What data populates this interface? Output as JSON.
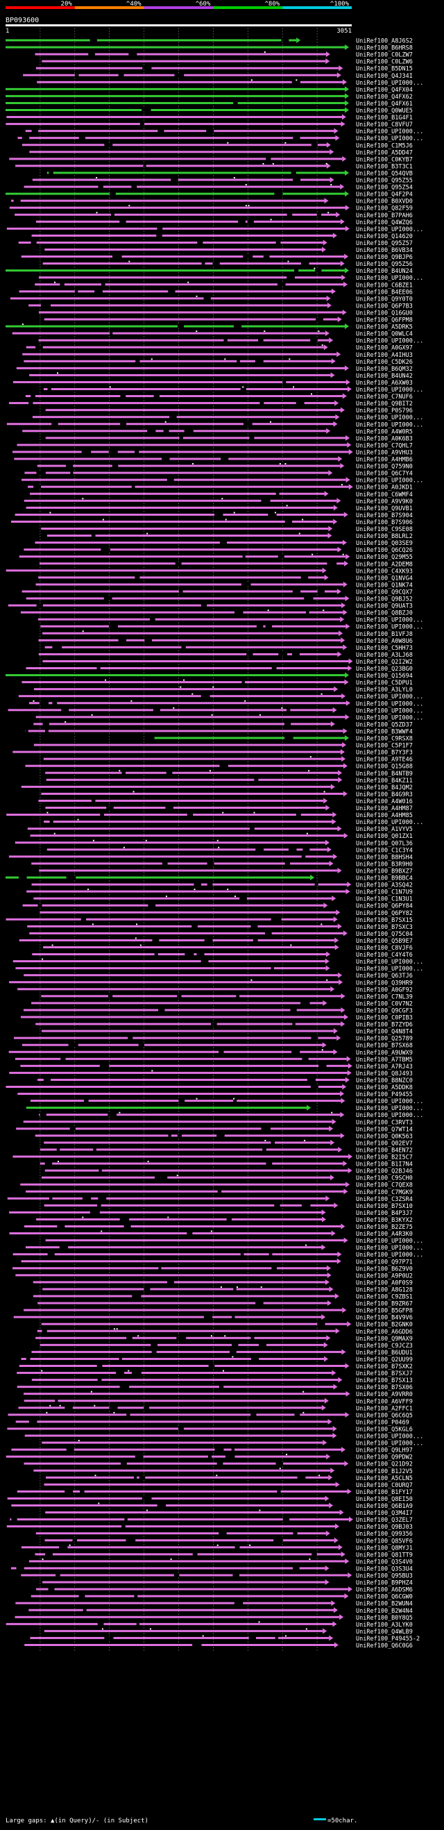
{
  "header": {
    "scale_labels": [
      "20%",
      "^40%",
      "^60%",
      "^80%",
      "^100%"
    ],
    "scale_colors": [
      "#ff0000",
      "#ff8000",
      "#b040e0",
      "#00cc00",
      "#00ccdd"
    ],
    "query_id": "BP093600",
    "start_label": "1",
    "end_label": "3051"
  },
  "colors": {
    "magenta": "#e070e0",
    "green": "#33cc33",
    "white": "#ffffff",
    "grid": "#7a7a7a",
    "background": "#000000"
  },
  "rows": [
    "UniRef100_A8J6S2",
    "UniRef100_B6HRS8",
    "UniRef100_C0LZW7",
    "UniRef100_C0LZW6",
    "UniRef100_B5DN15",
    "UniRef100_Q4J34I",
    "UniRef100_UPI000...",
    "UniRef100_Q4FX04",
    "UniRef100_Q4FX62",
    "UniRef100_Q4FX61",
    "UniRef100_Q0WUE5",
    "UniRef100_B1G4F1",
    "UniRef100_C8VFU7",
    "UniRef100_UPI000...",
    "UniRef100_UPI000...",
    "UniRef100_C1M5J6",
    "UniRef100_A5DD47",
    "UniRef100_C0KYB7",
    "UniRef100_B3T3C1",
    "UniRef100_Q54QVB",
    "UniRef100_Q95Z55",
    "UniRef100_Q95Z54",
    "UniRef100_Q4F2P4",
    "UniRef100_B0XVD0",
    "UniRef100_Q82F59",
    "UniRef100_B7PAH6",
    "UniRef100_Q4WZQ6",
    "UniRef100_UPI000...",
    "UniRef100_Q14620",
    "UniRef100_Q95Z57",
    "UniRef100_B6VB34",
    "UniRef100_Q9BJP6",
    "UniRef100_Q95Z56",
    "UniRef100_B4UN24",
    "UniRef100_UPI000...",
    "UniRef100_C6BZE1",
    "UniRef100_B4EE06",
    "UniRef100_Q9Y0T0",
    "UniRef100_Q6P7B3",
    "UniRef100_Q16GU0",
    "UniRef100_Q6FPM8",
    "UniRef100_A5DRK5",
    "UniRef100_Q0WLC4",
    "UniRef100_UPI000...",
    "UniRef100_A0GX97",
    "UniRef100_A4IHU3",
    "UniRef100_C5DK26",
    "UniRef100_B6QM32",
    "UniRef100_B4UN42",
    "UniRef100_A6XW03",
    "UniRef100_UPI000...",
    "UniRef100_C7NUF6",
    "UniRef100_Q9BIT2",
    "UniRef100_P0S796",
    "UniRef100_UPI000...",
    "UniRef100_UPI000...",
    "UniRef100_A4W0R5",
    "UniRef100_A0K6B3",
    "UniRef100_C7QHL7",
    "UniRef100_A9VHU3",
    "UniRef100_A4HMB6",
    "UniRef100_Q759N0",
    "UniRef100_Q6C7Y4",
    "UniRef100_UPI000...",
    "UniRef100_A0JKD1",
    "UniRef100_C6WMF4",
    "UniRef100_A9V9K0",
    "UniRef100_Q9UVB1",
    "UniRef100_B7S904",
    "UniRef100_B7S906",
    "UniRef100_C9SE08",
    "UniRef100_B8LRL2",
    "UniRef100_Q03SE9",
    "UniRef100_Q6CQ26",
    "UniRef100_Q29M55",
    "UniRef100_A2DEM8",
    "UniRef100_C4XK93",
    "UniRef100_Q1NVG4",
    "UniRef100_Q1NK74",
    "UniRef100_Q9CQX7",
    "UniRef100_Q9BJ52",
    "UniRef100_Q9UAT3",
    "UniRef100_Q8BZJ0",
    "UniRef100_UPI000...",
    "UniRef100_UPI000...",
    "UniRef100_B1VFJ8",
    "UniRef100_A0W8U6",
    "UniRef100_C5HH73",
    "UniRef100_A3LJ68",
    "UniRef100_Q2I2W2",
    "UniRef100_Q23BG0",
    "UniRef100_Q15694",
    "UniRef100_C5DPU1",
    "UniRef100_A3LYL0",
    "UniRef100_UPI000...",
    "UniRef100_UPI000...",
    "UniRef100_UPI000...",
    "UniRef100_UPI000...",
    "UniRef100_Q5ZD37",
    "UniRef100_B3WWF4",
    "UniRef100_C9RSX8",
    "UniRef100_C5P1F7",
    "UniRef100_B7Y3F3",
    "UniRef100_A9TE46",
    "UniRef100_Q15G88",
    "UniRef100_B4NTB9",
    "UniRef100_B4KZ11",
    "UniRef100_B4JQM2",
    "UniRef100_B4G9R3",
    "UniRef100_A4W016",
    "UniRef100_A4HM87",
    "UniRef100_A4HM85",
    "UniRef100_UPI000...",
    "UniRef100_A1VYV5",
    "UniRef100_Q01ZX1",
    "UniRef100_Q07L36",
    "UniRef100_C1C3Y4",
    "UniRef100_B8HSH4",
    "UniRef100_B3R9H0",
    "UniRef100_B9BXZ7",
    "UniRef100_B9BBC4",
    "UniRef100_A3SQ42",
    "UniRef100_C1N7U9",
    "UniRef100_C1N3U1",
    "UniRef100_Q6PY84",
    "UniRef100_Q6PY82",
    "UniRef100_B7SX15",
    "UniRef100_B7SXC3",
    "UniRef100_Q75C04",
    "UniRef100_Q5B9E7",
    "UniRef100_C8VJF6",
    "UniRef100_C4Y4T6",
    "UniRef100_UPI000...",
    "UniRef100_UPI000...",
    "UniRef100_Q63TJ6",
    "UniRef100_Q39HR9",
    "UniRef100_A0GF92",
    "UniRef100_C7NL39",
    "UniRef100_C0V7N2",
    "UniRef100_Q9CGF3",
    "UniRef100_C0PIB3",
    "UniRef100_B7ZYD6",
    "UniRef100_Q4N8T4",
    "UniRef100_Q25789",
    "UniRef100_B7SX68",
    "UniRef100_A9UWX9",
    "UniRef100_A7TBM5",
    "UniRef100_A7RJ43",
    "UniRef100_Q8J493",
    "UniRef100_B8NZC0",
    "UniRef100_A5DDK8",
    "UniRef100_P49455",
    "UniRef100_UPI000...",
    "UniRef100_UPI000...",
    "UniRef100_UPI000...",
    "UniRef100_C3RVT3",
    "UniRef100_Q7WT14",
    "UniRef100_Q0K563",
    "UniRef100_Q02EV7",
    "UniRef100_B4EN72",
    "UniRef100_B2I5C7",
    "UniRef100_B1I7N4",
    "UniRef100_Q2BJ46",
    "UniRef100_C9SCH0",
    "UniRef100_C7QEX8",
    "UniRef100_C7MGK9",
    "UniRef100_C3ZSR4",
    "UniRef100_B7SX10",
    "UniRef100_B4P3J7",
    "UniRef100_B3KYX2",
    "UniRef100_B2ZE75",
    "UniRef100_A4R3K0",
    "UniRef100_UPI000...",
    "UniRef100_UPI000...",
    "UniRef100_UPI000...",
    "UniRef100_Q97P71",
    "UniRef100_B6Z9V0",
    "UniRef100_A9P0U2",
    "UniRef100_A0F0S9",
    "UniRef100_A8G128",
    "UniRef100_C9ZBS1",
    "UniRef100_B9ZR67",
    "UniRef100_B5GFP8",
    "UniRef100_B4V9V6",
    "UniRef100_B2GNK0",
    "UniRef100_A6GDD6",
    "UniRef100_Q9MAX9",
    "UniRef100_C9JCZ3",
    "UniRef100_B6UDU1",
    "UniRef100_Q2UU99",
    "UniRef100_B7SXK2",
    "UniRef100_B7SXJ7",
    "UniRef100_B7SX13",
    "UniRef100_B7SX06",
    "UniRef100_A9VRR0",
    "UniRef100_A6VFF9",
    "UniRef100_A2FFC1",
    "UniRef100_Q6C6Q5",
    "UniRef100_P0469",
    "UniRef100_Q5KGL6",
    "UniRef100_UPI000...",
    "UniRef100_UPI000...",
    "UniRef100_Q9LH97",
    "UniRef100_Q9PDW2",
    "UniRef100_Q21D92",
    "UniRef100_B1J2V5",
    "UniRef100_A5CLN5",
    "UniRef100_C0URQ7",
    "UniRef100_B1FY17",
    "UniRef100_Q8EI50",
    "UniRef100_Q6B1A9",
    "UniRef100_Q3M4I7",
    "UniRef100_Q3ZEL7",
    "UniRef100_Q9BJ03",
    "UniRef100_Q99356",
    "UniRef100_Q85VF6",
    "UniRef100_Q8MYJ1",
    "UniRef100_Q81TT9",
    "UniRef100_Q3S4V0",
    "UniRef100_Q3S3U4",
    "UniRef100_Q95BU3",
    "UniRef100_B9PHZ4",
    "UniRef100_A6DSM6",
    "UniRef100_Q6CGW0",
    "UniRef100_B2WUN4",
    "UniRef100_B2W4N4",
    "UniRef100_B0Y8Q5",
    "UniRef100_A3LYK0",
    "UniRef100_Q4WLB9",
    "UniRef100_P49455-2",
    "UniRef100_Q6C0G6"
  ],
  "green_rows": [
    {
      "row": 0,
      "start": 0.0,
      "end": 0.84
    },
    {
      "row": 1,
      "start": 0.0,
      "end": 0.98
    },
    {
      "row": 7,
      "start": 0.0,
      "end": 0.98
    },
    {
      "row": 8,
      "start": 0.0,
      "end": 0.98
    },
    {
      "row": 9,
      "start": 0.0,
      "end": 0.98
    },
    {
      "row": 10,
      "start": 0.0,
      "end": 0.98
    },
    {
      "row": 19,
      "start": 0.12,
      "end": 0.98
    },
    {
      "row": 22,
      "start": 0.0,
      "end": 0.98
    },
    {
      "row": 33,
      "start": 0.0,
      "end": 0.98
    },
    {
      "row": 41,
      "start": 0.0,
      "end": 0.98
    },
    {
      "row": 91,
      "start": 0.0,
      "end": 0.98
    },
    {
      "row": 100,
      "start": 0.43,
      "end": 0.98
    },
    {
      "row": 120,
      "start": 0.0,
      "end": 0.88
    },
    {
      "row": 153,
      "start": 0.06,
      "end": 0.87
    }
  ],
  "footer": {
    "legend_text": "Large gaps: ▲(in Query)/- (in Subject)",
    "scale_text": "=50char."
  }
}
